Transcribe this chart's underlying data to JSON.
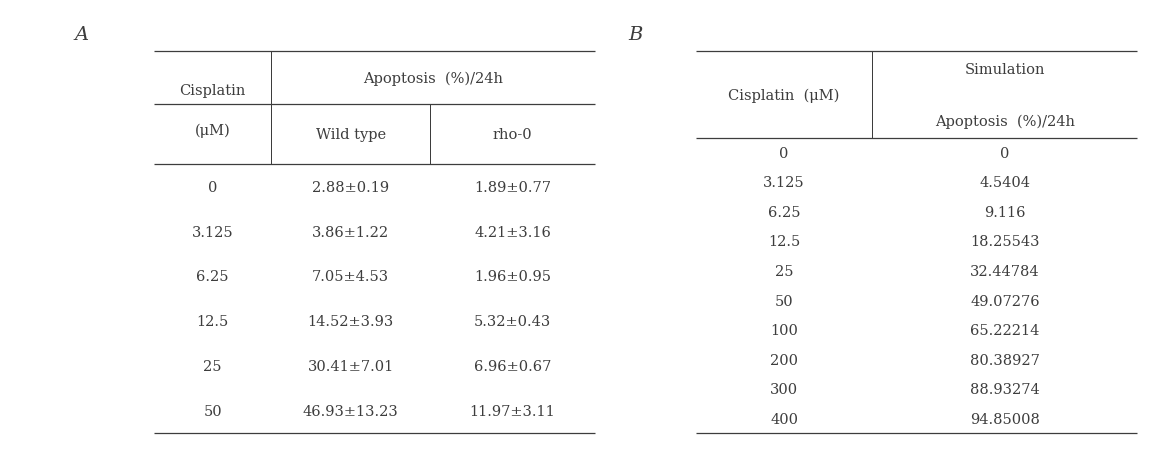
{
  "panel_A_label": "A",
  "panel_B_label": "B",
  "tableA": {
    "rows": [
      [
        "0",
        "2.88±0.19",
        "1.89±0.77"
      ],
      [
        "3.125",
        "3.86±1.22",
        "4.21±3.16"
      ],
      [
        "6.25",
        "7.05±4.53",
        "1.96±0.95"
      ],
      [
        "12.5",
        "14.52±3.93",
        "5.32±0.43"
      ],
      [
        "25",
        "30.41±7.01",
        "6.96±0.67"
      ],
      [
        "50",
        "46.93±13.23",
        "11.97±3.11"
      ]
    ]
  },
  "tableB": {
    "rows": [
      [
        "0",
        "0"
      ],
      [
        "3.125",
        "4.5404"
      ],
      [
        "6.25",
        "9.116"
      ],
      [
        "12.5",
        "18.25543"
      ],
      [
        "25",
        "32.44784"
      ],
      [
        "50",
        "49.07276"
      ],
      [
        "100",
        "65.22214"
      ],
      [
        "200",
        "80.38927"
      ],
      [
        "300",
        "88.93274"
      ],
      [
        "400",
        "94.85008"
      ]
    ]
  },
  "font_size": 10.5,
  "label_fontsize": 14,
  "text_color": "#3d3d3d",
  "background_color": "#ffffff",
  "line_color": "#3d3d3d",
  "line_width": 0.9
}
